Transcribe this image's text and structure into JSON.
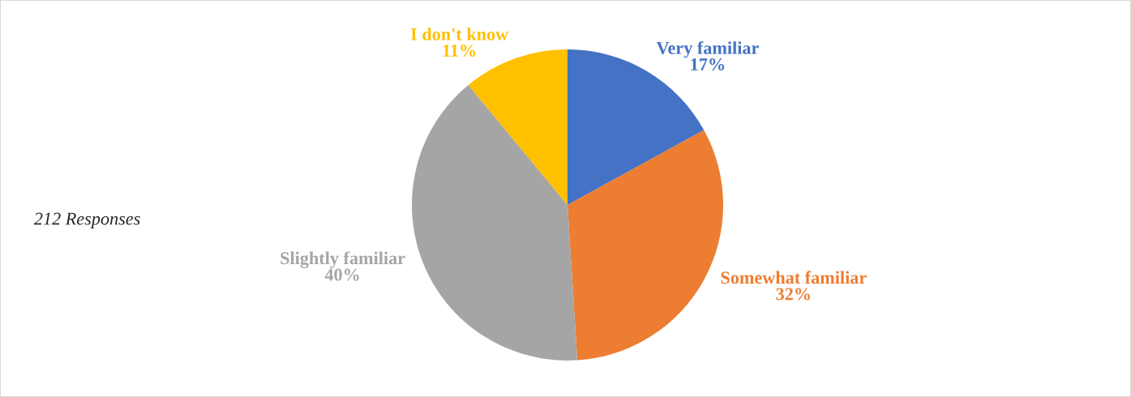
{
  "chart_data": {
    "type": "pie",
    "categories": [
      "Very familiar",
      "Somewhat familiar",
      "Slightly familiar",
      "I don't know"
    ],
    "values": [
      17,
      32,
      40,
      11
    ],
    "colors": [
      "#4472c4",
      "#ed7d31",
      "#a5a5a5",
      "#ffc000"
    ],
    "value_labels": [
      "17%",
      "32%",
      "40%",
      "11%"
    ],
    "legend": false,
    "annotations": [
      "212 Responses"
    ]
  }
}
